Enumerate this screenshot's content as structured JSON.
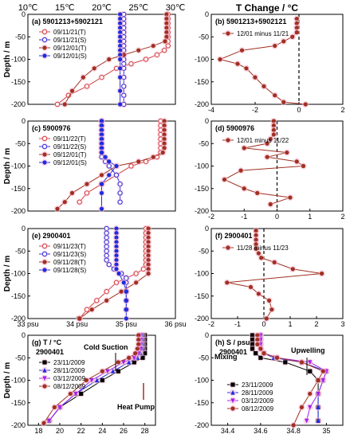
{
  "header": {
    "temp_axis_ticks": [
      "10℃",
      "15℃",
      "20℃",
      "25℃",
      "30℃"
    ],
    "right_title": "T Change / °C"
  },
  "chart_data": [
    {
      "id": "a",
      "type": "line",
      "label": "(a) 5901213+5902121",
      "ylabel": "Depth / m",
      "yticks": [
        0,
        -50,
        -100,
        -150,
        -200
      ],
      "xlim": [
        10,
        30
      ],
      "legend": [
        "09/11/21(T)",
        "09/11/21(S)",
        "09/12/01(T)",
        "09/12/01(S)"
      ],
      "series": [
        {
          "name": "09/11/21(T)",
          "color": "#d64040",
          "marker": "open-circle",
          "x": [
            29,
            29,
            29,
            29,
            29,
            29,
            29,
            29,
            28.5,
            27.5,
            26,
            24,
            22,
            20,
            18,
            15.5,
            14
          ],
          "y": [
            0,
            -10,
            -20,
            -30,
            -40,
            -50,
            -60,
            -70,
            -80,
            -90,
            -100,
            -110,
            -120,
            -140,
            -160,
            -180,
            -200
          ]
        },
        {
          "name": "09/11/21(S)",
          "color": "#2a2ae0",
          "marker": "open-circle",
          "x": [
            23,
            23,
            23,
            23,
            23,
            23,
            23,
            23,
            23,
            23,
            23,
            23,
            23,
            23,
            23,
            23,
            23
          ],
          "y": [
            0,
            -10,
            -20,
            -30,
            -40,
            -50,
            -60,
            -70,
            -80,
            -90,
            -100,
            -110,
            -120,
            -140,
            -160,
            -180,
            -200
          ]
        },
        {
          "name": "09/12/01(T)",
          "color": "#a03020",
          "marker": "filled-circle",
          "x": [
            28.8,
            28.8,
            28.8,
            28.8,
            28.8,
            28.8,
            28.6,
            27,
            25,
            23,
            21,
            19,
            17.5,
            16,
            15
          ],
          "y": [
            0,
            -10,
            -20,
            -30,
            -40,
            -50,
            -60,
            -70,
            -80,
            -90,
            -100,
            -120,
            -140,
            -170,
            -200
          ]
        },
        {
          "name": "09/12/01(S)",
          "color": "#1e2be0",
          "marker": "filled-circle",
          "x": [
            22.5,
            22.5,
            22.5,
            22.5,
            22.5,
            22.5,
            22.5,
            22.5,
            22.5,
            22.5,
            22.5,
            22.5,
            22.5,
            22.5,
            22.5
          ],
          "y": [
            0,
            -10,
            -20,
            -30,
            -40,
            -50,
            -60,
            -70,
            -80,
            -90,
            -100,
            -120,
            -140,
            -170,
            -200
          ]
        }
      ]
    },
    {
      "id": "b",
      "type": "line",
      "label": "(b) 5901213+5902121",
      "xlim": [
        -4,
        2
      ],
      "xticks": [
        -4,
        -2,
        0,
        2
      ],
      "legend": [
        "12/01 minus 11/21"
      ],
      "series": [
        {
          "name": "12/01 minus 11/21",
          "color": "#a03020",
          "marker": "filled-circle",
          "x": [
            -0.1,
            -0.1,
            -0.1,
            -0.1,
            -0.3,
            -0.7,
            -1.1,
            -2.6,
            -3.6,
            -2.8,
            -2.4,
            -2.0,
            -1.6,
            -1.1,
            -0.7,
            0.3
          ],
          "y": [
            -10,
            -20,
            -30,
            -40,
            -50,
            -60,
            -70,
            -80,
            -100,
            -110,
            -120,
            -140,
            -160,
            -180,
            -195,
            -200
          ]
        }
      ]
    },
    {
      "id": "c",
      "type": "line",
      "label": "(c) 5900976",
      "ylabel": "Depth / m",
      "yticks": [
        0,
        -50,
        -100,
        -150,
        -200
      ],
      "xlim": [
        10,
        30
      ],
      "legend": [
        "09/11/22(T)",
        "09/11/22(S)",
        "09/12/01(T)",
        "09/12/01(S)"
      ],
      "series": [
        {
          "name": "09/11/22(T)",
          "color": "#d64040",
          "marker": "open-circle",
          "x": [
            28,
            28,
            28,
            28,
            28,
            28,
            28,
            28,
            27.5,
            26,
            24,
            22,
            20,
            18,
            17
          ],
          "y": [
            0,
            -10,
            -20,
            -30,
            -40,
            -50,
            -60,
            -70,
            -80,
            -90,
            -100,
            -120,
            -140,
            -160,
            -180
          ]
        },
        {
          "name": "09/11/22(S)",
          "color": "#2a2ae0",
          "marker": "open-circle",
          "x": [
            20,
            20,
            20,
            20,
            20,
            20,
            20,
            20,
            20,
            20.5,
            21,
            22,
            22.5,
            22.5,
            22.5
          ],
          "y": [
            0,
            -10,
            -20,
            -30,
            -40,
            -50,
            -60,
            -70,
            -80,
            -90,
            -100,
            -120,
            -140,
            -160,
            -180
          ]
        },
        {
          "name": "09/12/01(T)",
          "color": "#a03020",
          "marker": "filled-circle",
          "x": [
            28.5,
            28.5,
            28.5,
            28.5,
            28.5,
            28.5,
            28.5,
            28.3,
            27,
            25,
            22,
            20,
            18,
            16,
            15,
            14
          ],
          "y": [
            0,
            -10,
            -20,
            -30,
            -40,
            -50,
            -60,
            -70,
            -80,
            -90,
            -100,
            -120,
            -140,
            -160,
            -180,
            -195
          ]
        },
        {
          "name": "09/12/01(S)",
          "color": "#1e2be0",
          "marker": "filled-circle",
          "x": [
            20,
            20,
            20,
            20,
            20,
            20,
            20,
            20,
            20.5,
            21,
            22,
            21,
            20,
            20,
            20
          ],
          "y": [
            0,
            -10,
            -20,
            -30,
            -40,
            -50,
            -60,
            -70,
            -80,
            -90,
            -100,
            -120,
            -140,
            -160,
            -195
          ]
        }
      ]
    },
    {
      "id": "d",
      "type": "line",
      "label": "(d) 5900976",
      "xlim": [
        -2,
        2
      ],
      "xticks": [
        -2,
        -1,
        0,
        1,
        2
      ],
      "legend": [
        "12/01 minus 11/22"
      ],
      "series": [
        {
          "name": "12/01 minus 11/22",
          "color": "#a03020",
          "marker": "filled-circle",
          "x": [
            -0.1,
            -0.1,
            -0.1,
            -0.1,
            -0.2,
            -0.3,
            -1.0,
            0.3,
            -0.3,
            0.6,
            0.8,
            -1.1,
            -1.6,
            -1.0,
            -0.6,
            0.4,
            -0.2
          ],
          "y": [
            0,
            -10,
            -20,
            -30,
            -40,
            -50,
            -60,
            -70,
            -80,
            -90,
            -100,
            -110,
            -130,
            -150,
            -160,
            -170,
            -185
          ]
        }
      ]
    },
    {
      "id": "e",
      "type": "line",
      "label": "(e) 2900401",
      "ylabel": "Depth / m",
      "yticks": [
        0,
        -50,
        -100,
        -150,
        -200
      ],
      "xlim": [
        33,
        36
      ],
      "xticks": [
        33,
        34,
        35,
        36
      ],
      "xtick_labels": [
        "33 psu",
        "34 psu",
        "35 psu",
        "36 psu"
      ],
      "legend": [
        "09/11/23(T)",
        "09/11/23(S)",
        "09/11/28(T)",
        "09/11/28(S)"
      ],
      "series": [
        {
          "name": "09/11/23(T)",
          "color": "#d64040",
          "marker": "open-circle",
          "x": [
            35.4,
            35.4,
            35.4,
            35.4,
            35.4,
            35.4,
            35.4,
            35.4,
            35.4,
            35.35,
            35.2,
            35.0,
            34.8,
            34.6,
            34.4,
            34.2,
            34.05
          ],
          "y": [
            0,
            -10,
            -20,
            -30,
            -40,
            -50,
            -60,
            -70,
            -80,
            -90,
            -100,
            -110,
            -120,
            -140,
            -160,
            -180,
            -200
          ]
        },
        {
          "name": "09/11/23(S)",
          "color": "#2a2ae0",
          "marker": "open-circle",
          "x": [
            34.6,
            34.6,
            34.6,
            34.6,
            34.6,
            34.6,
            34.6,
            34.6,
            34.65,
            34.75,
            34.9,
            35.0,
            35.0,
            35.0,
            35.0,
            35.0
          ],
          "y": [
            0,
            -10,
            -20,
            -30,
            -40,
            -50,
            -60,
            -70,
            -80,
            -90,
            -100,
            -110,
            -120,
            -140,
            -160,
            -180
          ]
        },
        {
          "name": "09/11/28(T)",
          "color": "#a03020",
          "marker": "filled-circle",
          "x": [
            35.45,
            35.45,
            35.45,
            35.45,
            35.45,
            35.45,
            35.45,
            35.45,
            35.45,
            35.45,
            35.45,
            35.2,
            34.9,
            34.6,
            34.3,
            34.05
          ],
          "y": [
            0,
            -10,
            -20,
            -30,
            -40,
            -50,
            -60,
            -70,
            -80,
            -90,
            -100,
            -120,
            -140,
            -160,
            -180,
            -200
          ]
        },
        {
          "name": "09/11/28(S)",
          "color": "#1e2be0",
          "marker": "filled-circle",
          "x": [
            34.8,
            34.8,
            34.8,
            34.8,
            34.8,
            34.8,
            34.8,
            34.8,
            34.8,
            34.8,
            34.85,
            34.95,
            35.0,
            35.0,
            35.0,
            35.0
          ],
          "y": [
            0,
            -10,
            -20,
            -30,
            -40,
            -50,
            -60,
            -70,
            -80,
            -90,
            -100,
            -120,
            -140,
            -160,
            -180,
            -200
          ]
        }
      ]
    },
    {
      "id": "f",
      "type": "line",
      "label": "(f) 2900401",
      "xlim": [
        -2,
        3
      ],
      "xticks": [
        -2,
        -1,
        0,
        1,
        2,
        3
      ],
      "legend": [
        "11/28 minus 11/23"
      ],
      "series": [
        {
          "name": "11/28 minus 11/23",
          "color": "#a03020",
          "marker": "filled-circle",
          "x": [
            -0.3,
            -0.3,
            -0.3,
            -0.3,
            -0.3,
            -0.2,
            -0.1,
            0.4,
            1.1,
            2.2,
            -1.4,
            -0.5,
            -0.2,
            0.2,
            0.3,
            0.1
          ],
          "y": [
            -5,
            -15,
            -25,
            -35,
            -45,
            -55,
            -65,
            -75,
            -90,
            -100,
            -120,
            -130,
            -145,
            -160,
            -180,
            -200
          ]
        }
      ]
    },
    {
      "id": "g",
      "type": "line",
      "label": "(g) T / °C",
      "sublabel": "2900401",
      "ylabel": "Depth / m",
      "yticks": [
        0,
        -50,
        -100,
        -150,
        -200
      ],
      "xlim": [
        17,
        29
      ],
      "xticks": [
        18,
        20,
        22,
        24,
        26,
        28
      ],
      "legend": [
        "23/11/2009",
        "28/11/2009",
        "03/12/2009",
        "08/12/2009"
      ],
      "annotations": [
        "Cold Suction",
        "Heat Pump"
      ],
      "series": [
        {
          "name": "23/11/2009",
          "color": "#000000",
          "marker": "square",
          "x": [
            28,
            28,
            28,
            28,
            28,
            27.8,
            27,
            25.5,
            24,
            22,
            20,
            19
          ],
          "y": [
            0,
            -10,
            -20,
            -30,
            -40,
            -50,
            -60,
            -80,
            -100,
            -130,
            -160,
            -190
          ]
        },
        {
          "name": "28/11/2009",
          "color": "#1e2be0",
          "marker": "triangle",
          "x": [
            27.8,
            27.8,
            27.8,
            27.8,
            27.6,
            27.3,
            26.5,
            25,
            23.5,
            21.5,
            20,
            19
          ],
          "y": [
            0,
            -10,
            -20,
            -30,
            -40,
            -50,
            -60,
            -80,
            -100,
            -130,
            -160,
            -190
          ]
        },
        {
          "name": "03/12/2009",
          "color": "#a020f0",
          "marker": "triangle-down",
          "x": [
            27.6,
            27.6,
            27.6,
            27.6,
            27.4,
            27,
            26,
            24.5,
            23,
            21.5,
            20,
            19
          ],
          "y": [
            0,
            -10,
            -20,
            -30,
            -40,
            -50,
            -60,
            -80,
            -100,
            -130,
            -160,
            -190
          ]
        },
        {
          "name": "08/12/2009",
          "color": "#a03020",
          "marker": "filled-circle",
          "x": [
            27.4,
            27.4,
            27.4,
            27.3,
            27.1,
            26.5,
            25.5,
            24,
            22.5,
            21,
            19.5,
            18.5
          ],
          "y": [
            0,
            -10,
            -20,
            -30,
            -40,
            -50,
            -60,
            -80,
            -100,
            -130,
            -160,
            -195
          ]
        }
      ]
    },
    {
      "id": "h",
      "type": "line",
      "label": "(h) S / psu",
      "sublabel": "2900401",
      "xlim": [
        34.3,
        35.1
      ],
      "xticks": [
        34.4,
        34.6,
        34.8,
        35.0
      ],
      "xtick_labels": [
        "34.4",
        "34.6",
        "34.8",
        "35"
      ],
      "legend": [
        "23/11/2009",
        "28/11/2009",
        "03/12/2009",
        "08/12/2009"
      ],
      "annotations": [
        "Mixing",
        "Upwelling"
      ],
      "series": [
        {
          "name": "23/11/2009",
          "color": "#000000",
          "marker": "square",
          "x": [
            34.55,
            34.55,
            34.55,
            34.55,
            34.57,
            34.6,
            34.75,
            34.9,
            34.95,
            34.95,
            34.95,
            34.95
          ],
          "y": [
            0,
            -10,
            -20,
            -30,
            -40,
            -50,
            -60,
            -80,
            -100,
            -130,
            -160,
            -190
          ]
        },
        {
          "name": "28/11/2009",
          "color": "#1e2be0",
          "marker": "triangle",
          "x": [
            34.6,
            34.6,
            34.6,
            34.6,
            34.62,
            34.68,
            34.85,
            35.0,
            34.98,
            34.95,
            34.95,
            34.95
          ],
          "y": [
            0,
            -10,
            -20,
            -30,
            -40,
            -50,
            -60,
            -80,
            -100,
            -130,
            -160,
            -190
          ]
        },
        {
          "name": "03/12/2009",
          "color": "#a020f0",
          "marker": "triangle-down",
          "x": [
            34.6,
            34.6,
            34.6,
            34.6,
            34.62,
            34.7,
            34.9,
            35.0,
            34.98,
            34.95,
            34.9,
            34.88
          ],
          "y": [
            0,
            -10,
            -20,
            -30,
            -40,
            -50,
            -60,
            -80,
            -100,
            -130,
            -160,
            -190
          ]
        },
        {
          "name": "08/12/2009",
          "color": "#a03020",
          "marker": "filled-circle",
          "x": [
            34.58,
            34.58,
            34.58,
            34.6,
            34.62,
            34.7,
            34.85,
            34.98,
            34.95,
            34.9,
            34.85,
            34.8
          ],
          "y": [
            0,
            -10,
            -20,
            -30,
            -40,
            -50,
            -60,
            -80,
            -100,
            -130,
            -160,
            -200
          ]
        }
      ]
    }
  ]
}
